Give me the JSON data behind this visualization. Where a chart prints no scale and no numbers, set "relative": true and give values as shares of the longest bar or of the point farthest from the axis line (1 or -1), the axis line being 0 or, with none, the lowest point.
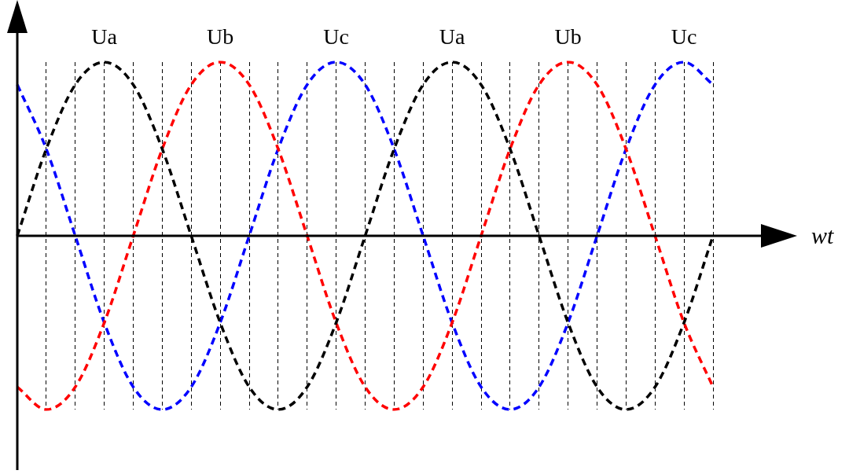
{
  "chart_data": {
    "type": "line",
    "xlabel": "wt",
    "relative": true,
    "grid": "x",
    "legend": false,
    "marker": "none",
    "line_style": "dashed",
    "categories": [
      null,
      null,
      null,
      null,
      null,
      null,
      null,
      null,
      null,
      null,
      null,
      null,
      null,
      null,
      null,
      null,
      null,
      null,
      null,
      null,
      null,
      null,
      null,
      null,
      null
    ],
    "series": [
      {
        "name": "Ua",
        "color": "#000000",
        "values": [
          0,
          0.5,
          0.87,
          1,
          0.87,
          0.5,
          0,
          -0.5,
          -0.87,
          -1,
          -0.87,
          -0.5,
          0,
          0.5,
          0.87,
          1,
          0.87,
          0.5,
          0,
          -0.5,
          -0.87,
          -1,
          -0.87,
          -0.5,
          0
        ]
      },
      {
        "name": "Ub",
        "color": "#ff0000",
        "values": [
          -0.87,
          -1,
          -0.87,
          -0.5,
          0,
          0.5,
          0.87,
          1,
          0.87,
          0.5,
          0,
          -0.5,
          -0.87,
          -1,
          -0.87,
          -0.5,
          0,
          0.5,
          0.87,
          1,
          0.87,
          0.5,
          0,
          -0.5,
          -0.87
        ]
      },
      {
        "name": "Uc",
        "color": "#0000ff",
        "values": [
          0.87,
          0.5,
          0,
          -0.5,
          -0.87,
          -1,
          -0.87,
          -0.5,
          0,
          0.5,
          0.87,
          1,
          0.87,
          0.5,
          0,
          -0.5,
          -0.87,
          -1,
          -0.87,
          -0.5,
          0,
          0.5,
          0.87,
          1,
          0.87
        ]
      }
    ]
  }
}
